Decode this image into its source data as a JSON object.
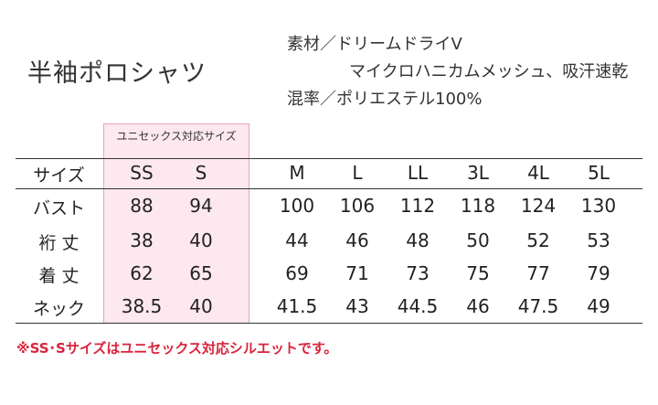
{
  "title": "半袖ポロシャツ",
  "material": {
    "line1": "素材／ドリームドライV",
    "line2": "マイクロハニカムメッシュ、吸汗速乾",
    "line3": "混率／ポリエステル100%"
  },
  "unisex_label": "ユニセックス対応サイズ",
  "table": {
    "header_label": "サイズ",
    "sizes": [
      "SS",
      "S",
      "M",
      "L",
      "LL",
      "3L",
      "4L",
      "5L"
    ],
    "rows": [
      {
        "label": "バスト",
        "values": [
          "88",
          "94",
          "100",
          "106",
          "112",
          "118",
          "124",
          "130"
        ]
      },
      {
        "label": "裄 丈",
        "values": [
          "38",
          "40",
          "44",
          "46",
          "48",
          "50",
          "52",
          "53"
        ]
      },
      {
        "label": "着 丈",
        "values": [
          "62",
          "65",
          "69",
          "71",
          "73",
          "75",
          "77",
          "79"
        ]
      },
      {
        "label": "ネック",
        "values": [
          "38.5",
          "40",
          "41.5",
          "43",
          "44.5",
          "46",
          "47.5",
          "49"
        ]
      }
    ]
  },
  "note": "※SS･Sサイズはユニセックス対応シルエットです。",
  "colors": {
    "unisex_bg": "#fce8ee",
    "unisex_border": "#e8a7b8",
    "note": "#d8243c"
  }
}
